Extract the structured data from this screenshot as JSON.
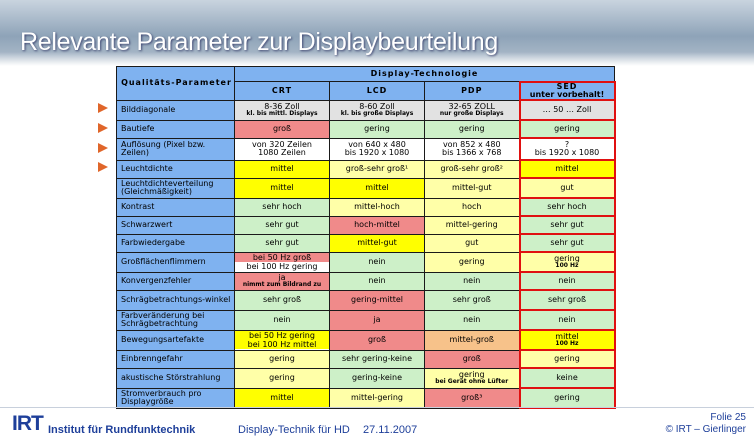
{
  "title": "Relevante Parameter zur Displaybeurteilung",
  "table": {
    "corner_label": "Qualitäts-Parameter",
    "group_header": "Display-Technologie",
    "technologies": [
      {
        "name": "CRT",
        "sub": ""
      },
      {
        "name": "LCD",
        "sub": ""
      },
      {
        "name": "PDP",
        "sub": ""
      },
      {
        "name": "SED",
        "sub": "unter vorbehalt!"
      }
    ],
    "rows": [
      {
        "label": "Bilddiagonale",
        "cells": [
          {
            "text": "8-36 Zoll",
            "note": "kl. bis mittl. Displays"
          },
          {
            "text": "8-60 Zoll",
            "note": "kl. bis große Displays"
          },
          {
            "text": "32-65 ZOLL",
            "note": "nur große Displays"
          },
          {
            "text": "… 50 … Zoll",
            "note": ""
          }
        ]
      },
      {
        "label": "Bautiefe",
        "cells": [
          {
            "text": "groß"
          },
          {
            "text": "gering"
          },
          {
            "text": "gering"
          },
          {
            "text": "gering"
          }
        ]
      },
      {
        "label": "Auflösung (Pixel bzw. Zeilen)",
        "cells": [
          {
            "text": "von 320 Zeilen",
            "text2": "1080 Zeilen"
          },
          {
            "text": "von 640 x 480",
            "text2": "bis 1920 x 1080"
          },
          {
            "text": "von 852 x 480",
            "text2": "bis 1366 x 768"
          },
          {
            "text": "?",
            "text2": "bis 1920 x 1080"
          }
        ]
      },
      {
        "label": "Leuchtdichte",
        "cells": [
          {
            "text": "mittel"
          },
          {
            "text": "groß-sehr groß¹"
          },
          {
            "text": "groß-sehr groß²"
          },
          {
            "text": "mittel"
          }
        ]
      },
      {
        "label": "Leuchtdichteverteilung (Gleichmäßigkeit)",
        "cells": [
          {
            "text": "mittel"
          },
          {
            "text": "mittel"
          },
          {
            "text": "mittel-gut"
          },
          {
            "text": "gut"
          }
        ]
      },
      {
        "label": "Kontrast",
        "cells": [
          {
            "text": "sehr hoch"
          },
          {
            "text": "mittel-hoch"
          },
          {
            "text": "hoch"
          },
          {
            "text": "sehr hoch"
          }
        ]
      },
      {
        "label": "Schwarzwert",
        "cells": [
          {
            "text": "sehr gut"
          },
          {
            "text": "hoch-mittel"
          },
          {
            "text": "mittel-gering"
          },
          {
            "text": "sehr gut"
          }
        ]
      },
      {
        "label": "Farbwiedergabe",
        "cells": [
          {
            "text": "sehr gut"
          },
          {
            "text": "mittel-gut"
          },
          {
            "text": "gut"
          },
          {
            "text": "sehr gut"
          }
        ]
      },
      {
        "label": "Großflächenflimmern",
        "cells": [
          {
            "text": "bei 50 Hz groß",
            "text2": "bei 100 Hz gering"
          },
          {
            "text": "nein"
          },
          {
            "text": "gering"
          },
          {
            "text": "gering",
            "note": "100 Hz"
          }
        ]
      },
      {
        "label": "Konvergenzfehler",
        "cells": [
          {
            "text": "ja",
            "note": "nimmt zum Bildrand zu"
          },
          {
            "text": "nein"
          },
          {
            "text": "nein"
          },
          {
            "text": "nein"
          }
        ]
      },
      {
        "label": "Schrägbetrachtungs-winkel",
        "cells": [
          {
            "text": "sehr groß"
          },
          {
            "text": "gering-mittel"
          },
          {
            "text": "sehr groß"
          },
          {
            "text": "sehr groß"
          }
        ]
      },
      {
        "label": "Farbveränderung bei Schrägbetrachtung",
        "cells": [
          {
            "text": "nein"
          },
          {
            "text": "ja"
          },
          {
            "text": "nein"
          },
          {
            "text": "nein"
          }
        ]
      },
      {
        "label": "Bewegungsartefakte",
        "cells": [
          {
            "text": "bei 50 Hz gering",
            "text2": "bei 100 Hz mittel"
          },
          {
            "text": "groß"
          },
          {
            "text": "mittel-groß"
          },
          {
            "text": "mittel",
            "note": "100 Hz"
          }
        ]
      },
      {
        "label": "Einbrenngefahr",
        "cells": [
          {
            "text": "gering"
          },
          {
            "text": "sehr gering-keine"
          },
          {
            "text": "groß"
          },
          {
            "text": "gering"
          }
        ]
      },
      {
        "label": "akustische Störstrahlung",
        "cells": [
          {
            "text": "gering"
          },
          {
            "text": "gering-keine"
          },
          {
            "text": "gering",
            "note": "bei Gerät ohne Lüfter"
          },
          {
            "text": "keine"
          }
        ]
      },
      {
        "label": "Stromverbrauch pro Displaygröße",
        "cells": [
          {
            "text": "mittel"
          },
          {
            "text": "mittel-gering"
          },
          {
            "text": "groß³"
          },
          {
            "text": "gering"
          }
        ]
      }
    ]
  },
  "colors": {
    "header_blue": "#7fb2f0",
    "red": "#f08a8a",
    "green": "#cdf0c8",
    "yellow": "#ffff00",
    "light_yellow": "#ffffa8",
    "gray": "#e2e2e2",
    "orange": "#f7c28a",
    "arrow": "#e0662a",
    "brand_blue": "#1e3f9a"
  },
  "footer": {
    "logo_mark": "IRT",
    "institute": "Institut für Rundfunktechnik",
    "course": "Display-Technik für HD",
    "date": "27.11.2007",
    "slide": "Folie 25",
    "copyright": "© IRT – Gierlinger"
  }
}
